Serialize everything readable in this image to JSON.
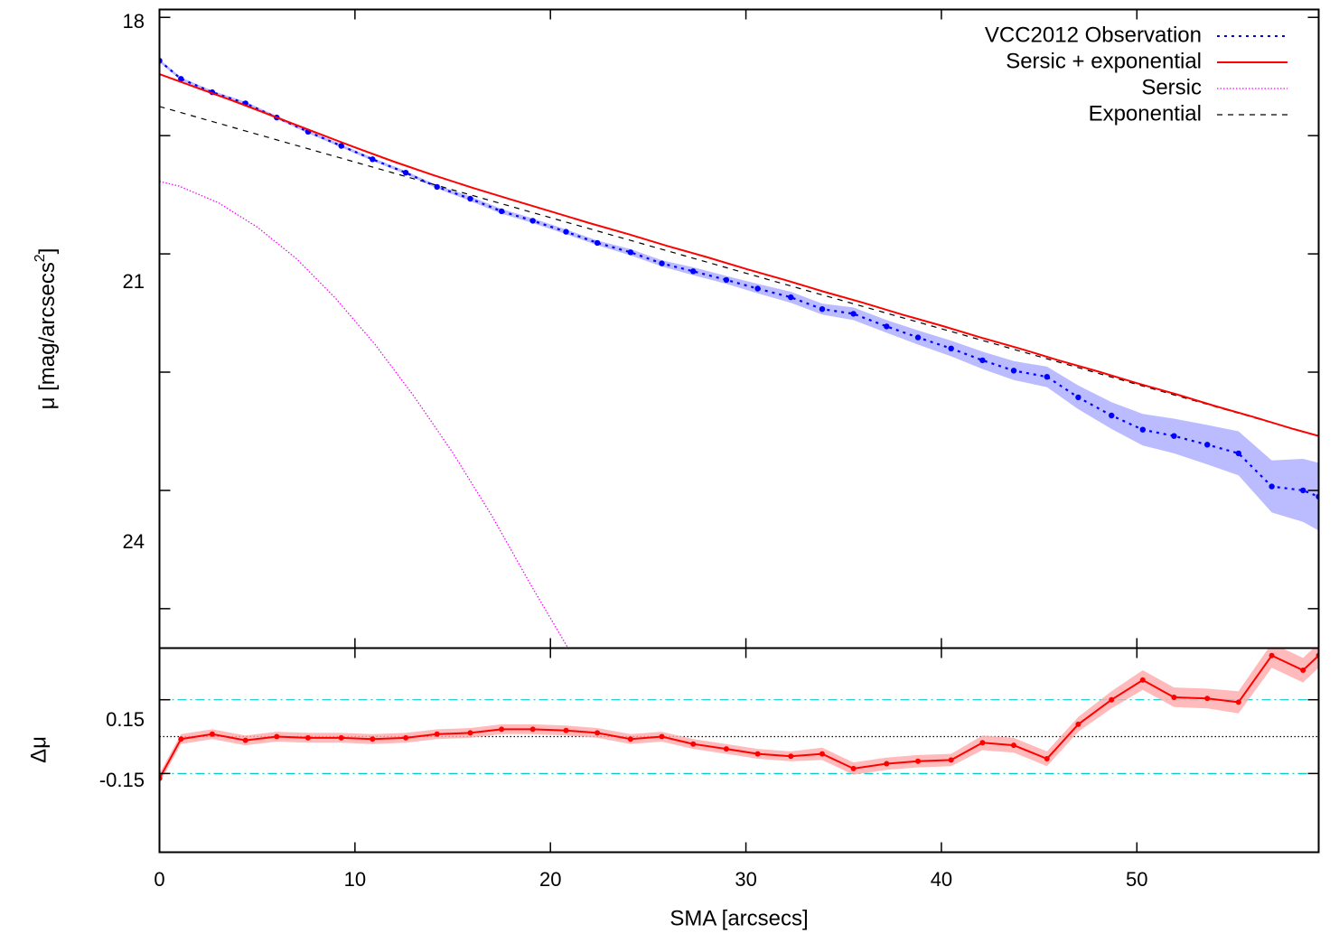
{
  "chart_data": [
    {
      "type": "line",
      "panel": "profile",
      "title": "",
      "xlabel": "",
      "ylabel": "μ [mag/arcsecs²]",
      "ylabel_main": "μ [mag/arcsecs",
      "ylabel_sup": "2",
      "ylabel_close": "]",
      "xlim": [
        0,
        59.3
      ],
      "ylim": [
        26.0,
        17.9
      ],
      "y_reversed": true,
      "yticks": [
        18,
        21,
        24
      ],
      "ytick_labels": [
        "18",
        "21",
        "24"
      ],
      "yticks_minor": [
        19.5,
        22.5,
        25.5
      ],
      "xticks": [
        0,
        10,
        20,
        30,
        40,
        50
      ],
      "legend_position": "top-right",
      "grid": false,
      "series": [
        {
          "name": "VCC2012 Observation",
          "style": "dotted-line-with-points",
          "color": "#0000ff",
          "band_color": "#aaaaff",
          "x": [
            0.0,
            1.1,
            2.7,
            4.4,
            6.0,
            7.6,
            9.3,
            10.9,
            12.6,
            14.2,
            15.9,
            17.5,
            19.1,
            20.8,
            22.4,
            24.1,
            25.7,
            27.3,
            29.0,
            30.6,
            32.3,
            33.9,
            35.5,
            37.2,
            38.8,
            40.5,
            42.1,
            43.7,
            45.4,
            47.0,
            48.7,
            50.3,
            51.9,
            53.6,
            55.2,
            56.9,
            58.5,
            59.3
          ],
          "y": [
            18.55,
            18.78,
            18.95,
            19.09,
            19.27,
            19.45,
            19.63,
            19.8,
            19.97,
            20.15,
            20.3,
            20.46,
            20.58,
            20.72,
            20.86,
            20.98,
            21.12,
            21.22,
            21.33,
            21.44,
            21.55,
            21.7,
            21.76,
            21.92,
            22.06,
            22.2,
            22.35,
            22.48,
            22.56,
            22.82,
            23.05,
            23.23,
            23.31,
            23.42,
            23.53,
            23.95,
            24.0,
            24.08
          ],
          "err": [
            0.02,
            0.02,
            0.02,
            0.02,
            0.02,
            0.02,
            0.02,
            0.02,
            0.02,
            0.02,
            0.03,
            0.03,
            0.03,
            0.03,
            0.03,
            0.04,
            0.04,
            0.05,
            0.05,
            0.06,
            0.07,
            0.07,
            0.08,
            0.08,
            0.09,
            0.1,
            0.11,
            0.12,
            0.13,
            0.15,
            0.17,
            0.2,
            0.22,
            0.25,
            0.28,
            0.33,
            0.4,
            0.43
          ]
        },
        {
          "name": "Sersic + exponential",
          "style": "solid",
          "color": "#ff0000",
          "x": [
            0,
            2,
            4,
            6,
            8,
            10,
            12,
            14,
            16,
            18,
            20,
            22,
            24,
            26,
            28,
            30,
            32,
            34,
            36,
            38,
            40,
            42,
            44,
            46,
            48,
            50,
            52,
            54,
            56,
            58,
            59.3
          ],
          "y": [
            18.72,
            18.9,
            19.08,
            19.27,
            19.46,
            19.65,
            19.83,
            20.0,
            20.16,
            20.31,
            20.46,
            20.61,
            20.75,
            20.9,
            21.04,
            21.19,
            21.33,
            21.48,
            21.62,
            21.77,
            21.91,
            22.06,
            22.2,
            22.35,
            22.49,
            22.64,
            22.78,
            22.93,
            23.07,
            23.22,
            23.31
          ]
        },
        {
          "name": "Sersic",
          "style": "dotted",
          "color": "#ff00ff",
          "x": [
            0,
            1,
            3,
            5,
            7,
            9,
            11,
            13,
            15,
            17,
            19,
            20.9
          ],
          "y": [
            20.08,
            20.14,
            20.35,
            20.66,
            21.06,
            21.56,
            22.14,
            22.8,
            23.52,
            24.32,
            25.2,
            26.0
          ]
        },
        {
          "name": "Exponential",
          "style": "dashed",
          "color": "#000000",
          "x": [
            0,
            59.3
          ],
          "y": [
            19.13,
            23.31
          ]
        }
      ]
    },
    {
      "type": "line",
      "panel": "residual",
      "title": "",
      "xlabel": "SMA [arcsecs]",
      "ylabel": "Δμ",
      "xlim": [
        0,
        59.3
      ],
      "ylim": [
        -0.47,
        0.36
      ],
      "yticks": [
        0.15,
        -0.15
      ],
      "ytick_labels": [
        "0.15",
        "-0.15"
      ],
      "xticks": [
        0,
        10,
        20,
        30,
        40,
        50
      ],
      "xtick_labels": [
        "0",
        "10",
        "20",
        "30",
        "40",
        "50"
      ],
      "reference_lines": [
        {
          "y": 0.15,
          "style": "dash-dot",
          "color": "#00cccc"
        },
        {
          "y": -0.15,
          "style": "dash-dot",
          "color": "#00cccc"
        },
        {
          "y": 0.0,
          "style": "dotted",
          "color": "#000000"
        }
      ],
      "series": [
        {
          "name": "",
          "style": "solid-line-with-points",
          "color": "#ff0000",
          "band_color": "#ffaaaa",
          "x": [
            0.0,
            1.1,
            2.7,
            4.4,
            6.0,
            7.6,
            9.3,
            10.9,
            12.6,
            14.2,
            15.9,
            17.5,
            19.1,
            20.8,
            22.4,
            24.1,
            25.7,
            27.3,
            29.0,
            30.6,
            32.3,
            33.9,
            35.5,
            37.2,
            38.8,
            40.5,
            42.1,
            43.7,
            45.4,
            47.0,
            48.7,
            50.3,
            51.9,
            53.6,
            55.2,
            56.9,
            58.5,
            59.3
          ],
          "y": [
            -0.17,
            -0.01,
            0.01,
            -0.015,
            0.0,
            -0.005,
            -0.005,
            -0.01,
            -0.005,
            0.01,
            0.015,
            0.03,
            0.03,
            0.025,
            0.015,
            -0.01,
            0.0,
            -0.03,
            -0.05,
            -0.07,
            -0.08,
            -0.07,
            -0.13,
            -0.11,
            -0.1,
            -0.095,
            -0.025,
            -0.035,
            -0.09,
            0.05,
            0.15,
            0.23,
            0.16,
            0.155,
            0.14,
            0.33,
            0.27,
            0.33
          ],
          "err": [
            0.02,
            0.02,
            0.02,
            0.02,
            0.02,
            0.02,
            0.02,
            0.02,
            0.02,
            0.02,
            0.02,
            0.02,
            0.02,
            0.02,
            0.02,
            0.02,
            0.02,
            0.02,
            0.02,
            0.02,
            0.02,
            0.025,
            0.025,
            0.025,
            0.025,
            0.025,
            0.03,
            0.03,
            0.03,
            0.03,
            0.035,
            0.04,
            0.04,
            0.04,
            0.045,
            0.05,
            0.05,
            0.05
          ]
        }
      ]
    }
  ]
}
